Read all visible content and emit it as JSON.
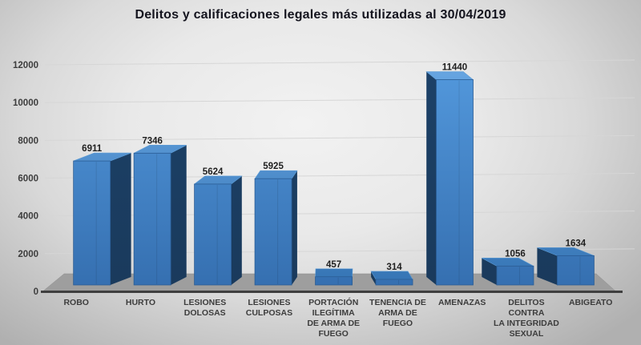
{
  "title": "Delitos y calificaciones legales más utilizadas al 30/04/2019",
  "chart_data": {
    "type": "bar",
    "style": "3d-column",
    "title": "Delitos y calificaciones legales más utilizadas al 30/04/2019",
    "categories": [
      "ROBO",
      "HURTO",
      "LESIONES DOLOSAS",
      "LESIONES CULPOSAS",
      "PORTACIÓN ILEGÍTIMA DE ARMA DE FUEGO",
      "TENENCIA DE ARMA DE FUEGO",
      "AMENAZAS",
      "DELITOS CONTRA LA INTEGRIDAD SEXUAL",
      "ABIGEATO"
    ],
    "category_lines": [
      [
        "ROBO"
      ],
      [
        "HURTO"
      ],
      [
        "LESIONES",
        "DOLOSAS"
      ],
      [
        "LESIONES",
        "CULPOSAS"
      ],
      [
        "PORTACIÓN",
        "ILEGÍTIMA",
        "DE ARMA DE",
        "FUEGO"
      ],
      [
        "TENENCIA DE",
        "ARMA DE",
        "FUEGO"
      ],
      [
        "AMENAZAS"
      ],
      [
        "DELITOS",
        "CONTRA",
        "LA INTEGRIDAD",
        "SEXUAL"
      ],
      [
        "ABIGEATO"
      ]
    ],
    "values": [
      6911,
      7346,
      5624,
      5925,
      457,
      314,
      11440,
      1056,
      1634
    ],
    "value_labels": [
      "6911",
      "7346",
      "5624",
      "5925",
      "457",
      "314",
      "11440",
      "1056",
      "1634"
    ],
    "xlabel": "",
    "ylabel": "",
    "ylim": [
      0,
      12000
    ],
    "y_ticks": [
      0,
      2000,
      4000,
      6000,
      8000,
      10000,
      12000
    ],
    "grid": true,
    "legend": "none",
    "colors": {
      "bar_front_light": "#549ade",
      "bar_front_dark": "#356fb0",
      "bar_top_light": "#6aa8e4",
      "bar_top_dark": "#3574b4",
      "bar_side_light": "#1c4168",
      "bar_side_dark": "#1a3a5c",
      "bar_outline": "#2a5c94",
      "floor": "#9e9e9e",
      "floor_edge": "#8f8f8f",
      "axis_line": "#3f3f3f",
      "grid_line": "#d6d6d6",
      "tick_label": "#3d3d3d",
      "category_label": "#3d3d3d",
      "value_label": "#1f1f1f",
      "title": "#14141e"
    }
  }
}
